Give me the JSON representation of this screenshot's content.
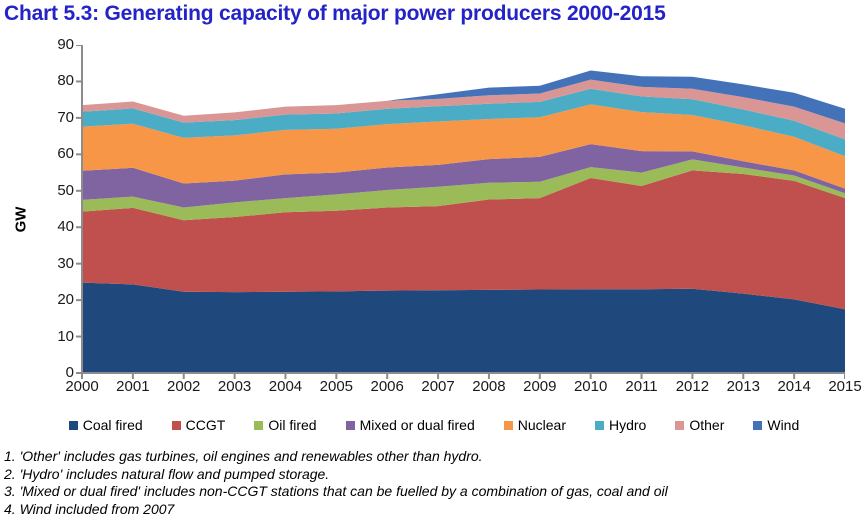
{
  "title": "Chart 5.3: Generating capacity of major power producers 2000-2015",
  "title_color": "#2323C8",
  "axis_color": "#8C8C8C",
  "text_color": "#1a1a1a",
  "chart_data": {
    "type": "area",
    "stacked": true,
    "title": "Chart 5.3: Generating capacity of major power producers 2000-2015",
    "xlabel": "",
    "ylabel": "GW",
    "ylim": [
      0,
      90
    ],
    "ytick_step": 10,
    "grid": false,
    "legend_position": "bottom",
    "x": [
      2000,
      2001,
      2002,
      2003,
      2004,
      2005,
      2006,
      2007,
      2008,
      2009,
      2010,
      2011,
      2012,
      2013,
      2014,
      2015
    ],
    "series": [
      {
        "name": "Coal fired",
        "color": "#1F497D",
        "values": [
          24.8,
          24.3,
          22.3,
          22.2,
          22.3,
          22.4,
          22.6,
          22.7,
          22.8,
          22.9,
          23.0,
          23.0,
          23.1,
          21.8,
          20.2,
          17.5
        ]
      },
      {
        "name": "CCGT",
        "color": "#C0504D",
        "values": [
          19.5,
          21.0,
          19.6,
          20.6,
          21.8,
          22.1,
          22.8,
          23.1,
          24.8,
          25.1,
          30.5,
          28.3,
          32.5,
          32.8,
          32.5,
          30.5
        ]
      },
      {
        "name": "Oil fired",
        "color": "#9BBB59",
        "values": [
          3.2,
          3.1,
          3.5,
          4.0,
          3.9,
          4.5,
          4.8,
          5.3,
          4.6,
          4.5,
          3.0,
          3.7,
          3.0,
          1.8,
          1.5,
          1.3
        ]
      },
      {
        "name": "Mixed or dual fired",
        "color": "#8064A2",
        "values": [
          8.0,
          7.9,
          6.6,
          6.0,
          6.5,
          6.0,
          6.2,
          6.0,
          6.5,
          6.8,
          6.3,
          5.9,
          2.2,
          1.7,
          1.4,
          1.3
        ]
      },
      {
        "name": "Nuclear",
        "color": "#F79646",
        "values": [
          12.1,
          12.1,
          12.5,
          12.4,
          12.2,
          12.0,
          11.9,
          11.9,
          11.0,
          10.9,
          10.9,
          10.7,
          10.0,
          9.9,
          9.2,
          8.9
        ]
      },
      {
        "name": "Hydro",
        "color": "#4BACC6",
        "values": [
          4.1,
          4.2,
          4.2,
          4.2,
          4.2,
          4.2,
          4.2,
          4.2,
          4.2,
          4.2,
          4.3,
          4.3,
          4.3,
          4.3,
          4.4,
          4.6
        ]
      },
      {
        "name": "Other",
        "color": "#D99694",
        "values": [
          1.8,
          1.9,
          1.9,
          2.1,
          2.2,
          2.3,
          2.2,
          2.0,
          2.3,
          2.3,
          2.5,
          2.6,
          2.9,
          3.4,
          3.9,
          4.4
        ]
      },
      {
        "name": "Wind",
        "color": "#4472B8",
        "values": [
          0,
          0,
          0,
          0,
          0,
          0,
          0,
          1.3,
          2.1,
          2.1,
          2.5,
          2.9,
          3.3,
          3.5,
          3.8,
          4.0
        ]
      }
    ]
  },
  "footnotes": [
    "1. 'Other' includes gas turbines, oil engines and renewables other than hydro.",
    "2. 'Hydro' includes natural flow and pumped storage.",
    "3. 'Mixed or dual fired' includes non-CCGT stations that can be fuelled by a combination of gas, coal and oil",
    "4. Wind included from 2007"
  ]
}
